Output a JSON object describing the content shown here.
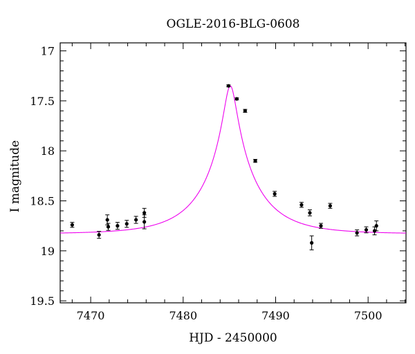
{
  "chart_data": {
    "type": "scatter",
    "title": "OGLE-2016-BLG-0608",
    "xlabel": "HJD - 2450000",
    "ylabel": "I magnitude",
    "xlim": [
      7466.7,
      7504.1
    ],
    "ylim": [
      19.52,
      16.92
    ],
    "y_inverted": true,
    "x_ticks": [
      7470,
      7480,
      7490,
      7500
    ],
    "x_tick_labels": [
      "7470",
      "7480",
      "7490",
      "7500"
    ],
    "y_ticks": [
      17,
      17.5,
      18,
      18.5,
      19,
      19.5
    ],
    "y_tick_labels": [
      "17",
      "17.5",
      "18",
      "18.5",
      "19",
      "19.5"
    ],
    "x_minor_step": 2,
    "y_minor_step": 0.1,
    "grid": false,
    "colors": {
      "points": "#000000",
      "model": "#ee00ee"
    },
    "series": [
      {
        "type": "errorbar",
        "x": [
          7468.0,
          7470.9,
          7471.8,
          7471.9,
          7472.9,
          7473.9,
          7474.9,
          7475.8,
          7475.8,
          7484.9,
          7485.8,
          7486.7,
          7487.8,
          7489.9,
          7492.8,
          7493.7,
          7493.9,
          7494.9,
          7495.9,
          7498.8,
          7499.8,
          7500.7,
          7500.9
        ],
        "y": [
          18.74,
          18.84,
          18.69,
          18.76,
          18.75,
          18.73,
          18.69,
          18.71,
          18.62,
          17.35,
          17.48,
          17.6,
          18.1,
          18.43,
          18.54,
          18.62,
          18.92,
          18.75,
          18.55,
          18.82,
          18.79,
          18.8,
          18.75
        ],
        "err": [
          0.025,
          0.035,
          0.05,
          0.035,
          0.035,
          0.035,
          0.035,
          0.07,
          0.045,
          0.01,
          0.01,
          0.015,
          0.015,
          0.025,
          0.025,
          0.03,
          0.07,
          0.025,
          0.025,
          0.03,
          0.03,
          0.04,
          0.05
        ]
      },
      {
        "type": "line",
        "model": {
          "t0": 7485.1,
          "tE": 5.6,
          "u0": 0.115,
          "baseline_mag": 18.83,
          "peak_mag": 17.35
        }
      }
    ]
  }
}
